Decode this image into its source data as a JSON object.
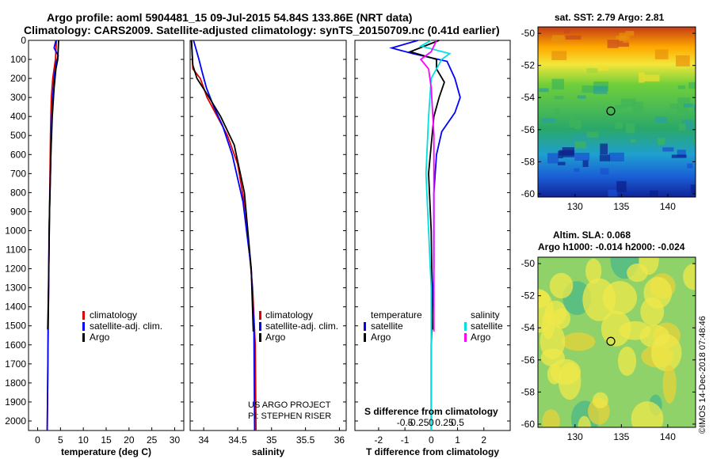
{
  "header": {
    "title_line1": "Argo profile: aoml 5904481_15 09-Jul-2015 54.84S 133.86E (NRT data)",
    "title_line2": "Climatology: CARS2009. Satellite-adjusted climatology: synTS_20150709.nc (0.41d earlier)"
  },
  "colors": {
    "climatology": "#e00000",
    "satellite": "#0000ff",
    "argo": "#000000",
    "sal_satellite": "#00e0e0",
    "sal_argo": "#ff00ff"
  },
  "depth_axis": {
    "range": [
      0,
      2050
    ],
    "ticks": [
      "0",
      "100",
      "200",
      "300",
      "400",
      "500",
      "600",
      "700",
      "800",
      "900",
      "1000",
      "1100",
      "1200",
      "1300",
      "1400",
      "1500",
      "1600",
      "1700",
      "1800",
      "1900",
      "2000"
    ]
  },
  "chart_data": [
    {
      "type": "line",
      "id": "temperature",
      "xlabel": "temperature (deg C)",
      "xlim": [
        -2,
        32
      ],
      "xticks": [
        "0",
        "5",
        "10",
        "15",
        "20",
        "25",
        "30"
      ],
      "legend": [
        "climatology",
        "satellite-adj. clim.",
        "Argo"
      ],
      "series": [
        {
          "name": "climatology",
          "color": "climatology",
          "x": [
            4.1,
            4.0,
            3.9,
            3.3,
            3.0,
            2.9,
            2.8,
            2.7,
            2.6,
            2.5,
            2.4,
            2.3,
            2.2,
            2.1
          ],
          "y": [
            0,
            50,
            100,
            200,
            300,
            400,
            500,
            700,
            900,
            1100,
            1300,
            1500,
            1800,
            2050
          ]
        },
        {
          "name": "satellite-adj. clim.",
          "color": "satellite",
          "x": [
            4.0,
            3.6,
            4.5,
            4.0,
            3.6,
            3.3,
            3.1,
            2.9,
            2.7,
            2.5,
            2.4,
            2.3,
            2.2,
            2.1
          ],
          "y": [
            0,
            40,
            80,
            120,
            200,
            300,
            400,
            600,
            800,
            1000,
            1300,
            1500,
            1800,
            2050
          ]
        },
        {
          "name": "Argo",
          "color": "argo",
          "x": [
            4.6,
            4.4,
            4.0,
            3.6,
            3.2,
            2.9,
            2.8,
            2.6,
            2.5,
            2.3,
            2.2
          ],
          "y": [
            0,
            100,
            150,
            250,
            400,
            600,
            700,
            900,
            1100,
            1400,
            1520
          ]
        }
      ]
    },
    {
      "type": "line",
      "id": "salinity",
      "xlabel": "salinity",
      "xlim": [
        33.8,
        36.1
      ],
      "xticks": [
        "34",
        "34.5",
        "35",
        "35.5",
        "36"
      ],
      "legend": [
        "climatology",
        "satellite-adj. clim.",
        "Argo"
      ],
      "credits": [
        "US ARGO PROJECT",
        "PI: STEPHEN RISER"
      ],
      "series": [
        {
          "name": "climatology",
          "color": "climatology",
          "x": [
            33.82,
            33.84,
            33.95,
            34.05,
            34.2,
            34.35,
            34.5,
            34.62,
            34.72,
            34.76,
            34.77
          ],
          "y": [
            0,
            150,
            200,
            300,
            400,
            500,
            650,
            900,
            1300,
            1600,
            2050
          ]
        },
        {
          "name": "satellite-adj. clim.",
          "color": "satellite",
          "x": [
            33.85,
            33.93,
            33.98,
            34.04,
            34.15,
            34.28,
            34.42,
            34.58,
            34.7,
            34.74,
            34.75
          ],
          "y": [
            0,
            100,
            170,
            250,
            350,
            450,
            600,
            850,
            1200,
            1500,
            2050
          ]
        },
        {
          "name": "Argo",
          "color": "argo",
          "x": [
            33.82,
            33.84,
            33.9,
            34.08,
            34.25,
            34.45,
            34.6,
            34.7,
            34.73
          ],
          "y": [
            0,
            130,
            200,
            300,
            400,
            550,
            800,
            1200,
            1530
          ]
        }
      ]
    },
    {
      "type": "line",
      "id": "difference",
      "xlabel": "T difference from climatology",
      "xlim": [
        -2.9,
        3.0
      ],
      "xticks": [
        "-2",
        "-1",
        "0",
        "1",
        "2"
      ],
      "secondary_xlabel": "S difference from climatology",
      "secondary_xticks": [
        "-0.5",
        "-0.25",
        "0",
        "0.25",
        "0.5"
      ],
      "legend": [
        "temperature",
        "satellite",
        "Argo",
        "salinity",
        "satellite",
        "Argo"
      ],
      "series": [
        {
          "name": "temperature satellite",
          "color": "satellite",
          "x": [
            -0.5,
            -1.5,
            -0.7,
            0.6,
            0.9,
            1.1,
            0.9,
            0.4,
            0.2,
            0.1,
            0.1,
            0.0,
            0.0
          ],
          "y": [
            0,
            40,
            70,
            110,
            200,
            300,
            380,
            480,
            600,
            800,
            1200,
            1600,
            2050
          ]
        },
        {
          "name": "temperature Argo",
          "color": "argo",
          "x": [
            0.3,
            -0.8,
            0.2,
            0.2,
            0.5,
            0.3,
            0.1,
            0.0,
            -0.1,
            0.0,
            0.05
          ],
          "y": [
            0,
            60,
            100,
            150,
            220,
            300,
            400,
            550,
            700,
            1000,
            1520
          ]
        },
        {
          "name": "salinity satellite",
          "color": "sal_satellite",
          "x": [
            0.0,
            -0.4,
            0.7,
            0.4,
            0.0,
            -0.1,
            -0.2,
            -0.1,
            0.0,
            0.0
          ],
          "y": [
            0,
            30,
            70,
            100,
            200,
            400,
            700,
            1000,
            1300,
            2050
          ]
        },
        {
          "name": "salinity Argo",
          "color": "sal_argo",
          "x": [
            0.2,
            0.0,
            -0.4,
            -0.1,
            0.0,
            0.1,
            0.1,
            0.1
          ],
          "y": [
            0,
            60,
            100,
            150,
            250,
            500,
            1000,
            1530
          ]
        }
      ]
    },
    {
      "type": "heatmap",
      "id": "sst_map",
      "title": "sat. SST: 2.79 Argo: 2.81",
      "xlim": [
        126,
        143
      ],
      "ylim": [
        -60.2,
        -49.6
      ],
      "xticks": [
        "130",
        "135",
        "140"
      ],
      "yticks": [
        "-50",
        "-52",
        "-54",
        "-56",
        "-58",
        "-60"
      ],
      "marker": {
        "lon": 133.86,
        "lat": -54.84
      }
    },
    {
      "type": "heatmap",
      "id": "sla_map",
      "title_line1": "Altim. SLA: 0.068",
      "title_line2": "Argo h1000: -0.014 h2000: -0.024",
      "xlim": [
        126,
        143
      ],
      "ylim": [
        -60.2,
        -49.6
      ],
      "xticks": [
        "130",
        "135",
        "140"
      ],
      "yticks": [
        "-50",
        "-52",
        "-54",
        "-56",
        "-58",
        "-60"
      ],
      "marker": {
        "lon": 133.86,
        "lat": -54.84
      }
    }
  ],
  "watermark": "©IMOS 14-Dec-2018 07:48:46"
}
